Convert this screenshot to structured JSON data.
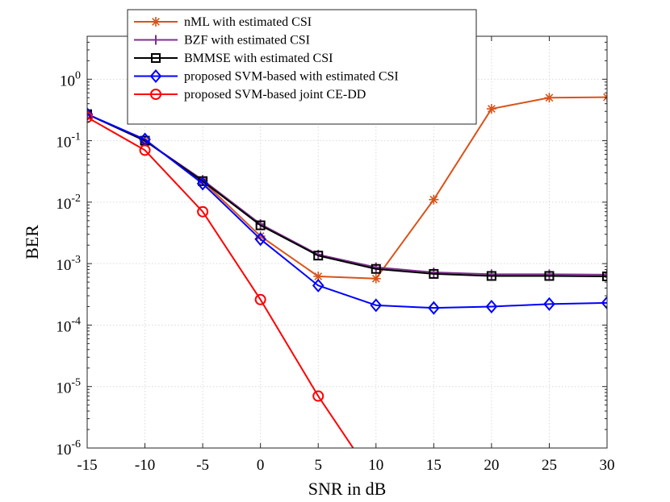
{
  "chart_data": {
    "type": "line",
    "title": "",
    "xlabel": "SNR in dB",
    "ylabel": "BER",
    "x_scale": "linear",
    "y_scale": "log",
    "xlim": [
      -15,
      30
    ],
    "ylim": [
      1e-06,
      5
    ],
    "x_ticks": [
      -15,
      -10,
      -5,
      0,
      5,
      10,
      15,
      20,
      25,
      30
    ],
    "x_tick_labels": [
      "-15",
      "-10",
      "-5",
      "0",
      "5",
      "10",
      "15",
      "20",
      "25",
      "30"
    ],
    "y_ticks": [
      {
        "value": 1,
        "base": "10",
        "exp": "0"
      },
      {
        "value": 0.1,
        "base": "10",
        "exp": "-1"
      },
      {
        "value": 0.01,
        "base": "10",
        "exp": "-2"
      },
      {
        "value": 0.001,
        "base": "10",
        "exp": "-3"
      },
      {
        "value": 0.0001,
        "base": "10",
        "exp": "-4"
      },
      {
        "value": 1e-05,
        "base": "10",
        "exp": "-5"
      },
      {
        "value": 1e-06,
        "base": "10",
        "exp": "-6"
      }
    ],
    "grid": true,
    "legend_position": "top-center",
    "x": [
      -15,
      -10,
      -5,
      0,
      5,
      10,
      15,
      20,
      25,
      30
    ],
    "series": [
      {
        "name": "nML with estimated CSI",
        "color": "#D95319",
        "marker": "asterisk",
        "values": [
          0.27,
          0.1,
          0.022,
          0.0028,
          0.00062,
          0.00057,
          0.011,
          0.33,
          0.5,
          0.51
        ]
      },
      {
        "name": "BZF with estimated CSI",
        "color": "#7E2F8E",
        "marker": "plus",
        "values": [
          0.27,
          0.1,
          0.023,
          0.0044,
          0.0014,
          0.00087,
          0.00072,
          0.00067,
          0.00067,
          0.00066
        ]
      },
      {
        "name": "BMMSE with estimated CSI",
        "color": "#000000",
        "marker": "square",
        "values": [
          0.27,
          0.1,
          0.022,
          0.0042,
          0.00135,
          0.00082,
          0.00068,
          0.00063,
          0.00063,
          0.00062
        ]
      },
      {
        "name": "proposed SVM-based with estimated CSI",
        "color": "#0000FF",
        "marker": "diamond",
        "values": [
          0.27,
          0.105,
          0.02,
          0.0025,
          0.00044,
          0.00021,
          0.00019,
          0.0002,
          0.00022,
          0.00023
        ]
      },
      {
        "name": "proposed SVM-based joint CE-DD",
        "color": "#FF0000",
        "marker": "circle",
        "values": [
          0.24,
          0.07,
          0.007,
          0.00026,
          7e-06,
          2.8e-07,
          null,
          null,
          null,
          null
        ]
      }
    ]
  }
}
